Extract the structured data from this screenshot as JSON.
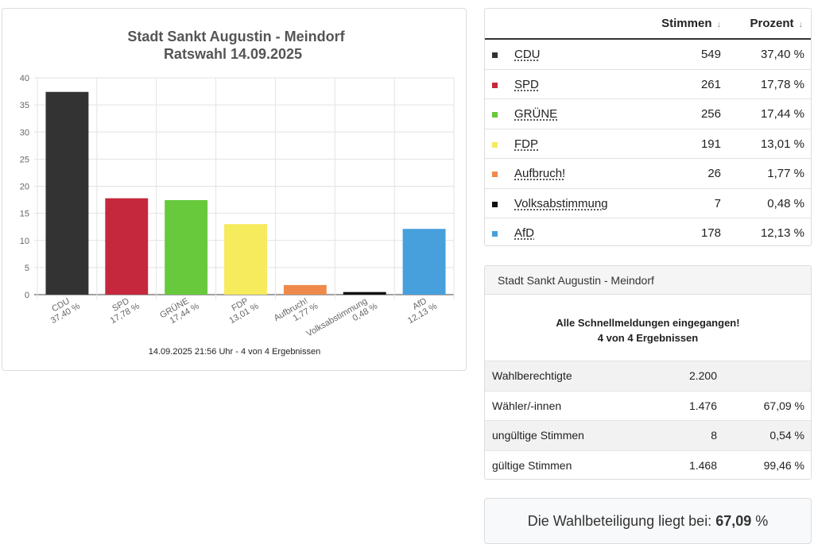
{
  "chart_data": {
    "type": "bar",
    "title": "Stadt Sankt Augustin - Meindorf",
    "subtitle": "Ratswahl 14.09.2025",
    "categories": [
      "CDU",
      "SPD",
      "GRÜNE",
      "FDP",
      "Aufbruch!",
      "Volksabstimmung",
      "AfD"
    ],
    "category_labels": [
      "37,40 %",
      "17,78 %",
      "17,44 %",
      "13,01 %",
      "1,77 %",
      "0,48 %",
      "12,13 %"
    ],
    "values": [
      37.4,
      17.78,
      17.44,
      13.01,
      1.77,
      0.48,
      12.13
    ],
    "colors": [
      "#333333",
      "#c5283d",
      "#67c93b",
      "#f6ea5d",
      "#ef8a4c",
      "#111111",
      "#479fdc"
    ],
    "ylim": [
      0,
      40
    ],
    "yticks": [
      0,
      5,
      10,
      15,
      20,
      25,
      30,
      35,
      40
    ],
    "grid": true,
    "footer": "14.09.2025 21:56 Uhr - 4 von 4 Ergebnissen"
  },
  "results": {
    "header": {
      "votes": "Stimmen",
      "percent": "Prozent",
      "sort_icon": "↓"
    },
    "rows": [
      {
        "party": "CDU",
        "votes": "549",
        "percent": "37,40 %",
        "color": "#333333"
      },
      {
        "party": "SPD",
        "votes": "261",
        "percent": "17,78 %",
        "color": "#c5283d"
      },
      {
        "party": "GRÜNE",
        "votes": "256",
        "percent": "17,44 %",
        "color": "#67c93b"
      },
      {
        "party": "FDP",
        "votes": "191",
        "percent": "13,01 %",
        "color": "#f6ea5d"
      },
      {
        "party": "Aufbruch!",
        "votes": "26",
        "percent": "1,77 %",
        "color": "#ef8a4c"
      },
      {
        "party": "Volksabstimmung",
        "votes": "7",
        "percent": "0,48 %",
        "color": "#111111"
      },
      {
        "party": "AfD",
        "votes": "178",
        "percent": "12,13 %",
        "color": "#479fdc"
      }
    ]
  },
  "summary": {
    "title": "Stadt Sankt Augustin - Meindorf",
    "note_line1": "Alle Schnellmeldungen eingegangen!",
    "note_line2": "4 von 4 Ergebnissen",
    "rows": [
      {
        "label": "Wahlberechtigte",
        "value": "2.200",
        "percent": ""
      },
      {
        "label": "Wähler/-innen",
        "value": "1.476",
        "percent": "67,09 %"
      },
      {
        "label": "ungültige Stimmen",
        "value": "8",
        "percent": "0,54 %"
      },
      {
        "label": "gültige Stimmen",
        "value": "1.468",
        "percent": "99,46 %"
      }
    ]
  },
  "turnout": {
    "text": "Die Wahlbeteiligung liegt bei:",
    "value": "67,09",
    "unit": "%"
  }
}
